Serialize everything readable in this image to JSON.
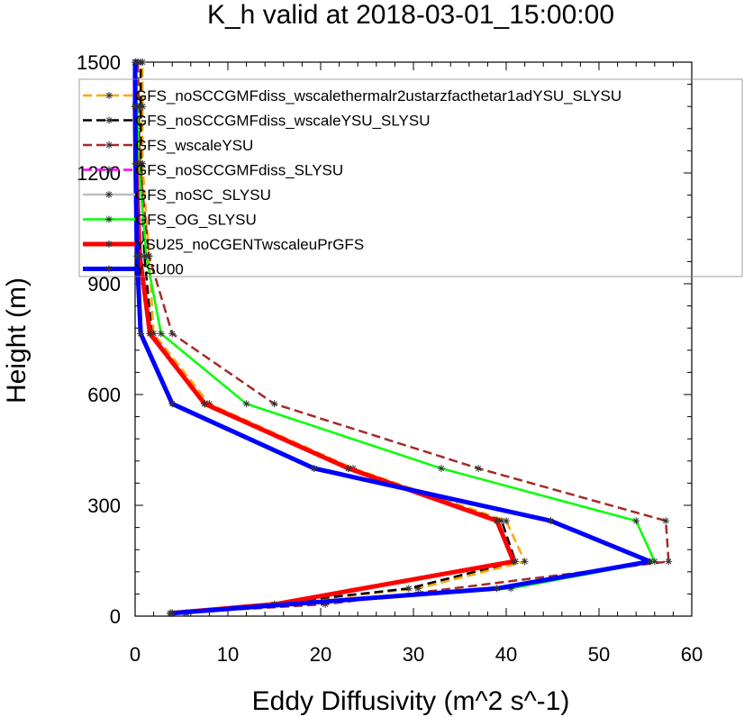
{
  "chart_data": {
    "type": "line",
    "title": "K_h valid at 2018-03-01_15:00:00",
    "xlabel": "Eddy Diffusivity (m^2 s^-1)",
    "ylabel": "Height (m)",
    "xlim": [
      0,
      60
    ],
    "ylim": [
      0,
      1500
    ],
    "xticks": [
      0,
      10,
      20,
      30,
      40,
      50,
      60
    ],
    "yticks": [
      0,
      300,
      600,
      900,
      1200,
      1500
    ],
    "grid": false,
    "legend_position": "top-right, inside plot",
    "series": [
      {
        "name": "GFS_noSCCGMFdiss_wscalethermalr2ustarzfacthetar1adYSU_SLYSU",
        "color": "#ffa500",
        "dash": "dashed",
        "marker": "asterisk",
        "x": [
          5.5,
          30.5,
          42.0,
          40.0,
          23.5,
          8.0,
          2.0,
          1.5,
          0.8,
          0.8,
          0.8
        ],
        "y": [
          8,
          75,
          148,
          258,
          400,
          575,
          765,
          975,
          1225,
          1380,
          1500
        ]
      },
      {
        "name": "GFS_noSCCGMFdiss_wscaleYSU_SLYSU",
        "color": "#000000",
        "dash": "dashed",
        "marker": "asterisk",
        "x": [
          5.5,
          29.5,
          41.0,
          39.5,
          23.0,
          7.5,
          1.8,
          1.0,
          0.6,
          0.6,
          0.6
        ],
        "y": [
          8,
          75,
          148,
          258,
          400,
          575,
          765,
          975,
          1225,
          1380,
          1500
        ]
      },
      {
        "name": "GFS_wscaleYSU",
        "color": "#a52a2a",
        "dash": "dashed",
        "marker": "asterisk",
        "x": [
          4.0,
          20.5,
          57.5,
          57.2,
          37.0,
          15.0,
          4.0,
          1.5,
          0.5,
          0.4,
          0.3
        ],
        "y": [
          8,
          32,
          148,
          258,
          400,
          575,
          765,
          975,
          1225,
          1380,
          1500
        ]
      },
      {
        "name": "GFS_noSCCGMFdiss_SLYSU",
        "color": "#ff00ff",
        "dash": "dashed",
        "marker": "asterisk",
        "x": [
          3.8,
          15.0,
          40.8,
          39.0,
          23.0,
          7.5,
          1.6,
          0.5,
          0.1,
          0.0,
          0.0
        ],
        "y": [
          8,
          32,
          148,
          258,
          400,
          575,
          765,
          975,
          1225,
          1380,
          1500
        ]
      },
      {
        "name": "GFS_noSC_SLYSU",
        "color": "#bebebe",
        "dash": "solid",
        "marker": "asterisk",
        "x": [
          3.8,
          15.0,
          40.8,
          39.0,
          23.0,
          7.5,
          1.6,
          0.5,
          0.1,
          0.0,
          0.0
        ],
        "y": [
          8,
          32,
          148,
          258,
          400,
          575,
          765,
          975,
          1225,
          1380,
          1500
        ]
      },
      {
        "name": "GFS_OG_SLYSU",
        "color": "#00ff00",
        "dash": "solid",
        "marker": "asterisk",
        "x": [
          4.0,
          40.5,
          56.0,
          54.0,
          33.0,
          12.0,
          2.8,
          1.2,
          0.4,
          0.2,
          0.1
        ],
        "y": [
          8,
          75,
          148,
          258,
          400,
          575,
          765,
          975,
          1225,
          1380,
          1500
        ]
      },
      {
        "name": "YSU25_noCGENTwscaleuPrGFS",
        "color": "#ff0000",
        "dash": "solid",
        "marker": "asterisk",
        "x": [
          3.8,
          15.0,
          40.8,
          39.0,
          23.0,
          7.5,
          1.6,
          0.5,
          0.1,
          0.0,
          0.0
        ],
        "y": [
          8,
          32,
          148,
          258,
          400,
          575,
          765,
          975,
          1225,
          1380,
          1500
        ]
      },
      {
        "name": "YSU00",
        "color": "#0000ff",
        "dash": "solid",
        "marker": "asterisk",
        "x": [
          4.0,
          39.0,
          55.5,
          44.8,
          19.3,
          4.0,
          0.6,
          0.2,
          0.05,
          0.0,
          0.0
        ],
        "y": [
          8,
          75,
          148,
          258,
          400,
          575,
          765,
          975,
          1225,
          1380,
          1500
        ]
      }
    ]
  }
}
